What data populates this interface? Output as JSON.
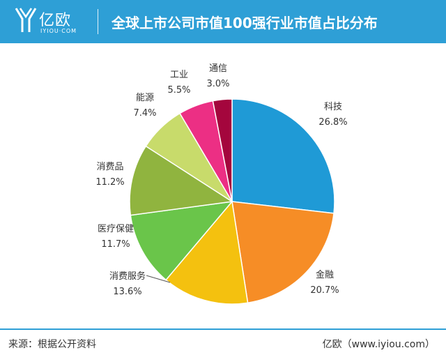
{
  "header": {
    "brand_name": "亿欧",
    "brand_sub": "IYIOU·COM",
    "title": "全球上市公司市值100强行业市值占比分布",
    "background_color": "#2e9fd6"
  },
  "chart_data": {
    "type": "pie",
    "title": "全球上市公司市值100强行业市值占比分布",
    "slices": [
      {
        "label": "科技",
        "value": 26.8,
        "value_label": "26.8%",
        "color": "#1f9ad6"
      },
      {
        "label": "金融",
        "value": 20.7,
        "value_label": "20.7%",
        "color": "#f68d26"
      },
      {
        "label": "消费服务",
        "value": 13.6,
        "value_label": "13.6%",
        "color": "#f4c10f"
      },
      {
        "label": "医疗保健",
        "value": 11.7,
        "value_label": "11.7%",
        "color": "#6ac54a"
      },
      {
        "label": "消费品",
        "value": 11.2,
        "value_label": "11.2%",
        "color": "#90b43f"
      },
      {
        "label": "能源",
        "value": 7.4,
        "value_label": "7.4%",
        "color": "#c8db6b"
      },
      {
        "label": "工业",
        "value": 5.5,
        "value_label": "5.5%",
        "color": "#ec2f84"
      },
      {
        "label": "通信",
        "value": 3.0,
        "value_label": "3.0%",
        "color": "#a4063d"
      }
    ],
    "start": "12 o'clock",
    "direction": "clockwise",
    "legend": "none"
  },
  "footer": {
    "source": "来源：根据公开资料",
    "credit": "亿欧（www.iyiou.com）",
    "line_color": "#2e9fd6"
  }
}
